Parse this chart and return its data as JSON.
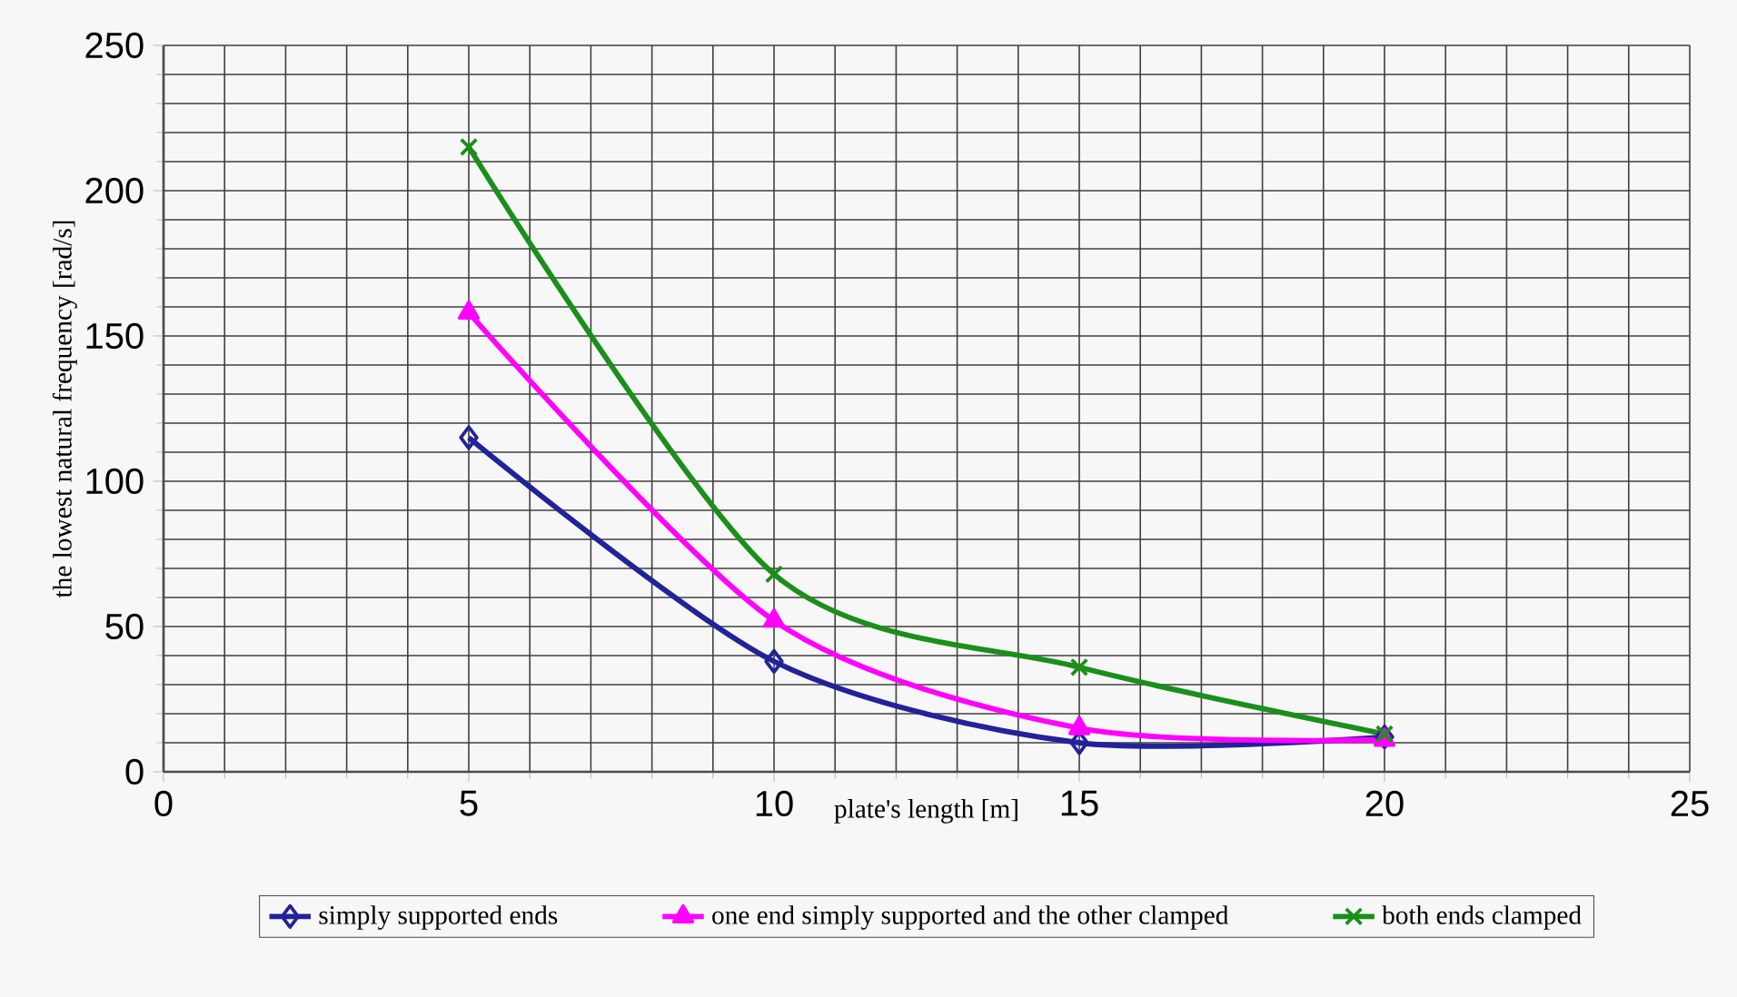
{
  "chart_data": {
    "type": "line",
    "xlabel": "plate's length [m]",
    "ylabel": "the lowest natural frequency [rad/s]",
    "x": [
      5,
      10,
      15,
      20
    ],
    "series": [
      {
        "name": "simply supported ends",
        "color": "#22229a",
        "marker": "diamond",
        "values": [
          115,
          38,
          10,
          12
        ]
      },
      {
        "name": "one end simply supported and the other clamped",
        "color": "#ff00ff",
        "marker": "triangle",
        "values": [
          158,
          52,
          15,
          11
        ]
      },
      {
        "name": "both ends clamped",
        "color": "#1a8f1a",
        "marker": "cross",
        "values": [
          215,
          68,
          36,
          13
        ]
      }
    ],
    "xlim": [
      0,
      25
    ],
    "ylim": [
      0,
      250
    ],
    "xticks": [
      0,
      5,
      10,
      15,
      20,
      25
    ],
    "yticks": [
      0,
      50,
      100,
      150,
      200,
      250
    ],
    "grid": true,
    "legend": "bottom",
    "line_style": "solid"
  }
}
